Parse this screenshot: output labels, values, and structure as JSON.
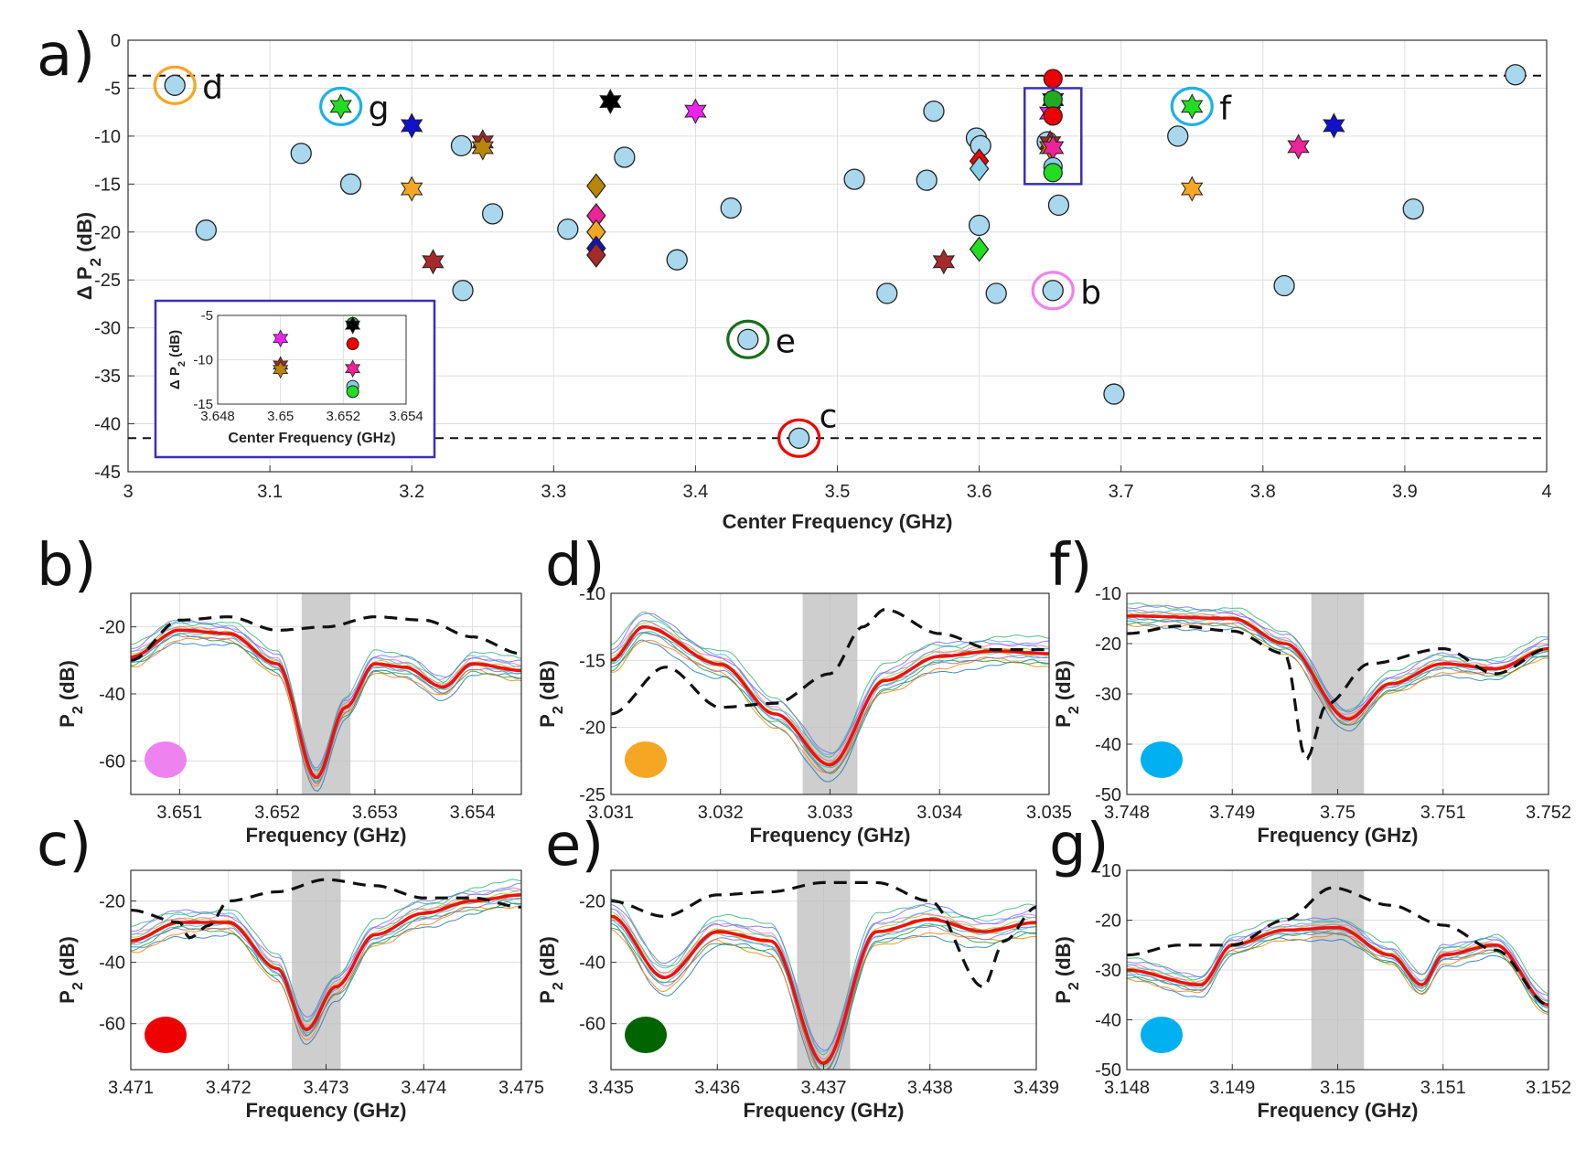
{
  "main": {
    "panel_letter": "a)",
    "xlabel": "Center Frequency (GHz)",
    "ylabel": "Δ P",
    "ylabel_sub": "2",
    "ylabel_unit": " (dB)",
    "xticks": [
      3,
      3.1,
      3.2,
      3.3,
      3.4,
      3.5,
      3.6,
      3.7,
      3.8,
      3.9,
      4
    ],
    "xtick_labels": [
      "3",
      "3.1",
      "3.2",
      "3.3",
      "3.4",
      "3.5",
      "3.6",
      "3.7",
      "3.8",
      "3.9",
      "4"
    ],
    "yticks": [
      0,
      -5,
      -10,
      -15,
      -20,
      -25,
      -30,
      -35,
      -40,
      -45
    ],
    "ytick_labels": [
      "0",
      "-5",
      "-10",
      "-15",
      "-20",
      "-25",
      "-30",
      "-35",
      "-40",
      "-45"
    ]
  },
  "chart_data": [
    {
      "type": "scatter",
      "id": "a",
      "title": "",
      "xlabel": "Center Frequency (GHz)",
      "ylabel": "Δ P2 (dB)",
      "xlim": [
        3,
        4
      ],
      "ylim": [
        -45,
        0
      ],
      "grid": true,
      "reference_lines": [
        {
          "y": -3.7,
          "style": "dashed"
        },
        {
          "y": -41.5,
          "style": "dashed"
        }
      ],
      "circles": [
        {
          "x": 3.033,
          "y": -4.7
        },
        {
          "x": 3.055,
          "y": -19.8
        },
        {
          "x": 3.122,
          "y": -11.8
        },
        {
          "x": 3.157,
          "y": -15.0
        },
        {
          "x": 3.235,
          "y": -11.0
        },
        {
          "x": 3.236,
          "y": -26.1
        },
        {
          "x": 3.257,
          "y": -18.1
        },
        {
          "x": 3.31,
          "y": -19.7
        },
        {
          "x": 3.35,
          "y": -12.2
        },
        {
          "x": 3.387,
          "y": -22.9
        },
        {
          "x": 3.425,
          "y": -17.5
        },
        {
          "x": 3.437,
          "y": -31.2
        },
        {
          "x": 3.473,
          "y": -41.5
        },
        {
          "x": 3.512,
          "y": -14.5
        },
        {
          "x": 3.535,
          "y": -26.4
        },
        {
          "x": 3.563,
          "y": -14.6
        },
        {
          "x": 3.568,
          "y": -7.4
        },
        {
          "x": 3.598,
          "y": -10.2
        },
        {
          "x": 3.601,
          "y": -11.0
        },
        {
          "x": 3.6,
          "y": -19.3
        },
        {
          "x": 3.612,
          "y": -26.4
        },
        {
          "x": 3.648,
          "y": -10.6
        },
        {
          "x": 3.652,
          "y": -26.1
        },
        {
          "x": 3.656,
          "y": -17.2
        },
        {
          "x": 3.695,
          "y": -36.9
        },
        {
          "x": 3.74,
          "y": -10.0
        },
        {
          "x": 3.815,
          "y": -25.6
        },
        {
          "x": 3.906,
          "y": -17.6
        },
        {
          "x": 3.978,
          "y": -3.6
        }
      ],
      "stars": [
        {
          "x": 3.15,
          "y": -6.9,
          "color": "#22dd22"
        },
        {
          "x": 3.2,
          "y": -8.9,
          "color": "#1111cc"
        },
        {
          "x": 3.2,
          "y": -15.5,
          "color": "#f5a623"
        },
        {
          "x": 3.215,
          "y": -23.1,
          "color": "#a52a2a"
        },
        {
          "x": 3.25,
          "y": -10.6,
          "color": "#a52a2a"
        },
        {
          "x": 3.25,
          "y": -11.2,
          "color": "#b8860b"
        },
        {
          "x": 3.34,
          "y": -6.4,
          "color": "#000000"
        },
        {
          "x": 3.4,
          "y": -7.4,
          "color": "#ee22ee"
        },
        {
          "x": 3.575,
          "y": -23.1,
          "color": "#a52a2a"
        },
        {
          "x": 3.65,
          "y": -7.6,
          "color": "#ee22ee"
        },
        {
          "x": 3.65,
          "y": -10.7,
          "color": "#a52a2a"
        },
        {
          "x": 3.65,
          "y": -11.2,
          "color": "#b8860b"
        },
        {
          "x": 3.652,
          "y": -6.2,
          "color": "#000000"
        },
        {
          "x": 3.652,
          "y": -11.2,
          "color": "#ee2299"
        },
        {
          "x": 3.75,
          "y": -6.9,
          "color": "#22dd22"
        },
        {
          "x": 3.75,
          "y": -15.5,
          "color": "#f5a623"
        },
        {
          "x": 3.825,
          "y": -11.1,
          "color": "#ee2299"
        },
        {
          "x": 3.85,
          "y": -8.9,
          "color": "#1111cc"
        }
      ],
      "diamonds": [
        {
          "x": 3.33,
          "y": -15.2,
          "color": "#b8860b"
        },
        {
          "x": 3.33,
          "y": -18.3,
          "color": "#ee2299"
        },
        {
          "x": 3.33,
          "y": -20.0,
          "color": "#f5a623"
        },
        {
          "x": 3.33,
          "y": -21.7,
          "color": "#1111cc"
        },
        {
          "x": 3.33,
          "y": -22.4,
          "color": "#a52a2a"
        },
        {
          "x": 3.6,
          "y": -12.6,
          "color": "#ff0000"
        },
        {
          "x": 3.6,
          "y": -13.4,
          "color": "#87ceeb"
        },
        {
          "x": 3.6,
          "y": -21.8,
          "color": "#22dd22"
        }
      ],
      "filled_circles": [
        {
          "x": 3.652,
          "y": -4.0,
          "color": "#ee0000"
        },
        {
          "x": 3.652,
          "y": -6.2,
          "color": "#22aa22"
        },
        {
          "x": 3.652,
          "y": -7.9,
          "color": "#ee0000"
        },
        {
          "x": 3.652,
          "y": -13.2,
          "color": "#87ceeb"
        },
        {
          "x": 3.652,
          "y": -13.8,
          "color": "#22dd22"
        }
      ],
      "highlight_box": {
        "x": [
          3.632,
          3.672
        ],
        "y": [
          -5.0,
          -15.0
        ]
      },
      "annotations": [
        {
          "label": "d",
          "x": 3.033,
          "y": -4.7,
          "ring": "#f5a623"
        },
        {
          "label": "g",
          "x": 3.15,
          "y": -6.9,
          "ring": "#1ab2e8"
        },
        {
          "label": "f",
          "x": 3.75,
          "y": -6.9,
          "ring": "#1ab2e8"
        },
        {
          "label": "b",
          "x": 3.652,
          "y": -26.1,
          "ring": "#ee82ee"
        },
        {
          "label": "e",
          "x": 3.437,
          "y": -31.2,
          "ring": "#1a6e1a"
        },
        {
          "label": "c",
          "x": 3.473,
          "y": -41.5,
          "ring": "#ee0000"
        }
      ],
      "inset": {
        "xlabel": "Center Frequency (GHz)",
        "ylabel": "Δ P2 (dB)",
        "xlim": [
          3.648,
          3.654
        ],
        "ylim": [
          -15,
          -5
        ],
        "xtick_labels": [
          "3.648",
          "3.65",
          "3.652",
          "3.654"
        ],
        "ytick_labels": [
          "-5",
          "-10",
          "-15"
        ],
        "points": [
          {
            "x": 3.65,
            "y": -7.6,
            "shape": "star",
            "color": "#ee22ee"
          },
          {
            "x": 3.65,
            "y": -10.6,
            "shape": "star",
            "color": "#a52a2a"
          },
          {
            "x": 3.65,
            "y": -11.1,
            "shape": "star",
            "color": "#b8860b"
          },
          {
            "x": 3.6523,
            "y": -5.9,
            "shape": "circle",
            "color": "#22aa22"
          },
          {
            "x": 3.6523,
            "y": -6.1,
            "shape": "star",
            "color": "#000000"
          },
          {
            "x": 3.6523,
            "y": -8.2,
            "shape": "circle",
            "color": "#ee0000"
          },
          {
            "x": 3.6523,
            "y": -11.0,
            "shape": "star",
            "color": "#ee2299"
          },
          {
            "x": 3.6523,
            "y": -13.0,
            "shape": "circle",
            "color": "#87ceeb"
          },
          {
            "x": 3.6523,
            "y": -13.6,
            "shape": "circle",
            "color": "#22dd22"
          }
        ]
      }
    },
    {
      "type": "line",
      "id": "b",
      "panel_letter": "b)",
      "xlabel": "Frequency (GHz)",
      "ylabel": "P2 (dB)",
      "xlim": [
        3.6505,
        3.6545
      ],
      "ylim": [
        -70,
        -10
      ],
      "xticks": [
        3.651,
        3.652,
        3.653,
        3.654
      ],
      "xtick_labels": [
        "3.651",
        "3.652",
        "3.653",
        "3.654"
      ],
      "yticks": [
        -20,
        -40,
        -60
      ],
      "ytick_labels": [
        "-20",
        "-40",
        "-60"
      ],
      "shaded_band": [
        3.65225,
        3.65275
      ],
      "dot_color": "#ee82ee",
      "dashed": [
        [
          3.6505,
          -30
        ],
        [
          3.651,
          -18
        ],
        [
          3.6515,
          -17
        ],
        [
          3.652,
          -21
        ],
        [
          3.6525,
          -20
        ],
        [
          3.653,
          -17
        ],
        [
          3.6535,
          -18
        ],
        [
          3.654,
          -23
        ],
        [
          3.6545,
          -28
        ]
      ],
      "red": [
        [
          3.6505,
          -29
        ],
        [
          3.651,
          -21
        ],
        [
          3.6515,
          -22
        ],
        [
          3.652,
          -31
        ],
        [
          3.6524,
          -65
        ],
        [
          3.6527,
          -44
        ],
        [
          3.653,
          -31
        ],
        [
          3.6533,
          -32
        ],
        [
          3.6537,
          -38
        ],
        [
          3.654,
          -31
        ],
        [
          3.6545,
          -33
        ]
      ],
      "spread": 8
    },
    {
      "type": "line",
      "id": "c",
      "panel_letter": "c)",
      "xlabel": "Frequency (GHz)",
      "ylabel": "P2 (dB)",
      "xlim": [
        3.471,
        3.475
      ],
      "ylim": [
        -75,
        -10
      ],
      "xticks": [
        3.471,
        3.472,
        3.473,
        3.474,
        3.475
      ],
      "xtick_labels": [
        "3.471",
        "3.472",
        "3.473",
        "3.474",
        "3.475"
      ],
      "yticks": [
        -20,
        -40,
        -60
      ],
      "ytick_labels": [
        "-20",
        "-40",
        "-60"
      ],
      "shaded_band": [
        3.47265,
        3.47315
      ],
      "dot_color": "#ee0000",
      "dashed": [
        [
          3.471,
          -23
        ],
        [
          3.4715,
          -27
        ],
        [
          3.4716,
          -32
        ],
        [
          3.4718,
          -28
        ],
        [
          3.472,
          -20
        ],
        [
          3.4725,
          -17
        ],
        [
          3.473,
          -13
        ],
        [
          3.4735,
          -15
        ],
        [
          3.474,
          -19
        ],
        [
          3.4745,
          -19
        ],
        [
          3.475,
          -22
        ]
      ],
      "red": [
        [
          3.471,
          -33
        ],
        [
          3.4715,
          -27
        ],
        [
          3.472,
          -27
        ],
        [
          3.4725,
          -42
        ],
        [
          3.4728,
          -62
        ],
        [
          3.4731,
          -48
        ],
        [
          3.4735,
          -31
        ],
        [
          3.474,
          -24
        ],
        [
          3.4745,
          -20
        ],
        [
          3.475,
          -18
        ]
      ],
      "spread": 10
    },
    {
      "type": "line",
      "id": "d",
      "panel_letter": "d)",
      "xlabel": "Frequency (GHz)",
      "ylabel": "P2 (dB)",
      "xlim": [
        3.031,
        3.035
      ],
      "ylim": [
        -25,
        -10
      ],
      "xticks": [
        3.031,
        3.032,
        3.033,
        3.034,
        3.035
      ],
      "xtick_labels": [
        "3.031",
        "3.032",
        "3.033",
        "3.034",
        "3.035"
      ],
      "yticks": [
        -10,
        -15,
        -20,
        -25
      ],
      "ytick_labels": [
        "-10",
        "-15",
        "-20",
        "-25"
      ],
      "shaded_band": [
        3.03275,
        3.03325
      ],
      "dot_color": "#f5a623",
      "dashed": [
        [
          3.031,
          -19
        ],
        [
          3.0315,
          -15.5
        ],
        [
          3.032,
          -18.5
        ],
        [
          3.0325,
          -18.2
        ],
        [
          3.033,
          -16
        ],
        [
          3.0333,
          -12.5
        ],
        [
          3.0335,
          -11.2
        ],
        [
          3.034,
          -13
        ],
        [
          3.0345,
          -14.2
        ],
        [
          3.035,
          -14.2
        ]
      ],
      "red": [
        [
          3.031,
          -15
        ],
        [
          3.0313,
          -12.5
        ],
        [
          3.032,
          -15.3
        ],
        [
          3.0325,
          -19
        ],
        [
          3.033,
          -22.8
        ],
        [
          3.0335,
          -16.5
        ],
        [
          3.034,
          -14.7
        ],
        [
          3.0345,
          -14.3
        ],
        [
          3.035,
          -14.5
        ]
      ],
      "spread": 2.5
    },
    {
      "type": "line",
      "id": "e",
      "panel_letter": "e)",
      "xlabel": "Frequency (GHz)",
      "ylabel": "P2 (dB)",
      "xlim": [
        3.435,
        3.439
      ],
      "ylim": [
        -75,
        -10
      ],
      "xticks": [
        3.435,
        3.436,
        3.437,
        3.438,
        3.439
      ],
      "xtick_labels": [
        "3.435",
        "3.436",
        "3.437",
        "3.438",
        "3.439"
      ],
      "yticks": [
        -20,
        -40,
        -60
      ],
      "ytick_labels": [
        "-20",
        "-40",
        "-60"
      ],
      "shaded_band": [
        3.43675,
        3.43725
      ],
      "dot_color": "#006400",
      "dashed": [
        [
          3.435,
          -20
        ],
        [
          3.4355,
          -25
        ],
        [
          3.436,
          -18
        ],
        [
          3.4365,
          -17
        ],
        [
          3.437,
          -14
        ],
        [
          3.4375,
          -14
        ],
        [
          3.438,
          -20
        ],
        [
          3.4385,
          -48
        ],
        [
          3.4387,
          -33
        ],
        [
          3.439,
          -22
        ]
      ],
      "red": [
        [
          3.435,
          -25
        ],
        [
          3.4355,
          -45
        ],
        [
          3.436,
          -30
        ],
        [
          3.4365,
          -33
        ],
        [
          3.437,
          -73
        ],
        [
          3.4375,
          -30
        ],
        [
          3.438,
          -26
        ],
        [
          3.4385,
          -30
        ],
        [
          3.439,
          -27
        ]
      ],
      "spread": 12
    },
    {
      "type": "line",
      "id": "f",
      "panel_letter": "f)",
      "xlabel": "Frequency (GHz)",
      "ylabel": "P2 (dB)",
      "xlim": [
        3.748,
        3.752
      ],
      "ylim": [
        -50,
        -10
      ],
      "xticks": [
        3.748,
        3.749,
        3.75,
        3.751,
        3.752
      ],
      "xtick_labels": [
        "3.748",
        "3.749",
        "3.75",
        "3.751",
        "3.752"
      ],
      "yticks": [
        -10,
        -20,
        -30,
        -40,
        -50
      ],
      "ytick_labels": [
        "-10",
        "-20",
        "-30",
        "-40",
        "-50"
      ],
      "shaded_band": [
        3.74975,
        3.75025
      ],
      "dot_color": "#00b0f0",
      "dashed": [
        [
          3.748,
          -18
        ],
        [
          3.7485,
          -16.5
        ],
        [
          3.749,
          -17.5
        ],
        [
          3.7495,
          -22
        ],
        [
          3.7497,
          -43
        ],
        [
          3.7499,
          -32
        ],
        [
          3.7503,
          -24
        ],
        [
          3.751,
          -21
        ],
        [
          3.7515,
          -26
        ],
        [
          3.752,
          -21
        ]
      ],
      "red": [
        [
          3.748,
          -14.5
        ],
        [
          3.749,
          -15
        ],
        [
          3.7495,
          -20
        ],
        [
          3.7501,
          -35
        ],
        [
          3.7505,
          -28
        ],
        [
          3.751,
          -24
        ],
        [
          3.7515,
          -25
        ],
        [
          3.752,
          -21
        ]
      ],
      "spread": 5
    },
    {
      "type": "line",
      "id": "g",
      "panel_letter": "g)",
      "xlabel": "Frequency (GHz)",
      "ylabel": "P2 (dB)",
      "xlim": [
        3.148,
        3.152
      ],
      "ylim": [
        -50,
        -10
      ],
      "xticks": [
        3.148,
        3.149,
        3.15,
        3.151,
        3.152
      ],
      "xtick_labels": [
        "3.148",
        "3.149",
        "3.15",
        "3.151",
        "3.152"
      ],
      "yticks": [
        -10,
        -20,
        -30,
        -40,
        -50
      ],
      "ytick_labels": [
        "-10",
        "-20",
        "-30",
        "-40",
        "-50"
      ],
      "shaded_band": [
        3.14975,
        3.15025
      ],
      "dot_color": "#00b0f0",
      "dashed": [
        [
          3.148,
          -27
        ],
        [
          3.1485,
          -25
        ],
        [
          3.149,
          -25
        ],
        [
          3.1495,
          -20
        ],
        [
          3.14995,
          -13.5
        ],
        [
          3.1505,
          -17
        ],
        [
          3.151,
          -21
        ],
        [
          3.1515,
          -26
        ],
        [
          3.152,
          -37
        ]
      ],
      "red": [
        [
          3.148,
          -30
        ],
        [
          3.1487,
          -33
        ],
        [
          3.149,
          -25
        ],
        [
          3.1495,
          -22
        ],
        [
          3.15,
          -21.5
        ],
        [
          3.1505,
          -27
        ],
        [
          3.1508,
          -33
        ],
        [
          3.151,
          -27
        ],
        [
          3.1515,
          -25
        ],
        [
          3.152,
          -37
        ]
      ],
      "spread": 5
    }
  ]
}
